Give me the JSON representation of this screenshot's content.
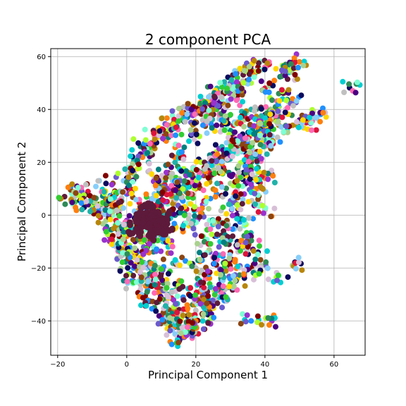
{
  "chart_data": {
    "type": "scatter",
    "title": "2 component PCA",
    "xlabel": "Principal Component 1",
    "ylabel": "Principal Component 2",
    "xlim": [
      -22,
      69
    ],
    "ylim": [
      -53,
      63
    ],
    "xticks": [
      -20,
      0,
      20,
      40,
      60
    ],
    "yticks": [
      -40,
      -20,
      0,
      20,
      40,
      60
    ],
    "grid": true,
    "legend": false,
    "palette": [
      "#0b0b5e",
      "#5e1a3a",
      "#7fffd4",
      "#a9d18e",
      "#1e90ff",
      "#9932cc",
      "#d8bfd8",
      "#ff7f0e",
      "#2e8b57",
      "#dc143c",
      "#adff2f",
      "#87cefa",
      "#b8860b",
      "#4b0082",
      "#20b2aa",
      "#ff69b4",
      "#00ced1",
      "#8b4513",
      "#c0c0c0",
      "#6a5acd",
      "#32cd32",
      "#ffd700",
      "#008080",
      "#800000"
    ],
    "points": [
      [
        64.5,
        48.2
      ],
      [
        -18,
        7
      ],
      [
        44,
        -23
      ],
      [
        48,
        -19
      ],
      [
        36,
        -40
      ],
      [
        42,
        -40
      ],
      [
        39,
        -19
      ],
      [
        50,
        58
      ],
      [
        46,
        57
      ],
      [
        52,
        35
      ],
      [
        55,
        37
      ],
      [
        56,
        38
      ],
      [
        48,
        34
      ],
      [
        50,
        36
      ],
      [
        44,
        41
      ],
      [
        40,
        56
      ],
      [
        47,
        54
      ],
      [
        46,
        55
      ],
      [
        -14,
        9
      ],
      [
        -13,
        9
      ],
      [
        -15,
        5
      ],
      [
        -12,
        4
      ],
      [
        -10,
        3
      ],
      [
        -8,
        4
      ],
      [
        -6,
        12
      ],
      [
        -6,
        6
      ],
      [
        -4,
        8
      ],
      [
        -2,
        9
      ],
      [
        0,
        8
      ],
      [
        2,
        16
      ],
      [
        4,
        22
      ],
      [
        6,
        25
      ],
      [
        8,
        28
      ],
      [
        10,
        30
      ],
      [
        12,
        32
      ],
      [
        14,
        34
      ],
      [
        16,
        36
      ],
      [
        18,
        38
      ],
      [
        20,
        40
      ],
      [
        22,
        42
      ],
      [
        24,
        44
      ],
      [
        26,
        46
      ],
      [
        28,
        48
      ],
      [
        30,
        50
      ],
      [
        32,
        52
      ],
      [
        34,
        54
      ],
      [
        36,
        55
      ],
      [
        38,
        56
      ],
      [
        -3,
        -5
      ],
      [
        -2,
        -10
      ],
      [
        -1,
        -15
      ],
      [
        0,
        -18
      ],
      [
        1,
        -22
      ],
      [
        2,
        -25
      ],
      [
        4,
        -28
      ],
      [
        6,
        -32
      ],
      [
        8,
        -35
      ],
      [
        10,
        -38
      ],
      [
        12,
        -42
      ],
      [
        14,
        -45
      ],
      [
        15,
        -47
      ],
      [
        16,
        -46
      ],
      [
        18,
        -44
      ],
      [
        20,
        -42
      ],
      [
        22,
        -40
      ],
      [
        24,
        -36
      ],
      [
        26,
        -32
      ],
      [
        28,
        -30
      ],
      [
        30,
        -26
      ],
      [
        32,
        -24
      ],
      [
        34,
        -22
      ],
      [
        36,
        -20
      ],
      [
        38,
        -14
      ],
      [
        36,
        -8
      ],
      [
        34,
        -4
      ],
      [
        32,
        0
      ],
      [
        30,
        4
      ],
      [
        34,
        8
      ],
      [
        38,
        10
      ],
      [
        40,
        14
      ],
      [
        38,
        18
      ],
      [
        36,
        22
      ],
      [
        40,
        26
      ],
      [
        42,
        30
      ],
      [
        44,
        34
      ],
      [
        40,
        38
      ],
      [
        36,
        40
      ],
      [
        32,
        44
      ],
      [
        28,
        46
      ],
      [
        24,
        42
      ],
      [
        20,
        40
      ],
      [
        16,
        38
      ],
      [
        12,
        34
      ],
      [
        8,
        30
      ],
      [
        4,
        26
      ],
      [
        2,
        20
      ],
      [
        0,
        14
      ],
      [
        -2,
        4
      ],
      [
        -4,
        0
      ],
      [
        -6,
        -2
      ],
      [
        -8,
        2
      ],
      [
        -5,
        -8
      ],
      [
        -3,
        -12
      ],
      [
        0,
        -8
      ],
      [
        2,
        -4
      ],
      [
        4,
        0
      ],
      [
        6,
        4
      ],
      [
        8,
        8
      ],
      [
        10,
        12
      ],
      [
        12,
        16
      ],
      [
        14,
        20
      ],
      [
        16,
        24
      ],
      [
        18,
        28
      ],
      [
        20,
        32
      ],
      [
        22,
        36
      ],
      [
        24,
        38
      ],
      [
        26,
        40
      ],
      [
        28,
        36
      ],
      [
        30,
        32
      ],
      [
        32,
        28
      ],
      [
        34,
        24
      ],
      [
        36,
        20
      ],
      [
        38,
        16
      ],
      [
        30,
        12
      ],
      [
        26,
        8
      ],
      [
        22,
        4
      ],
      [
        18,
        0
      ],
      [
        14,
        -4
      ],
      [
        10,
        -8
      ],
      [
        6,
        -12
      ],
      [
        4,
        -16
      ],
      [
        6,
        -20
      ],
      [
        8,
        -24
      ],
      [
        10,
        -28
      ],
      [
        12,
        -30
      ],
      [
        14,
        -34
      ],
      [
        16,
        -38
      ],
      [
        18,
        -40
      ],
      [
        20,
        -36
      ],
      [
        22,
        -30
      ],
      [
        24,
        -26
      ],
      [
        26,
        -22
      ],
      [
        28,
        -18
      ],
      [
        30,
        -14
      ],
      [
        32,
        -10
      ],
      [
        28,
        -6
      ],
      [
        24,
        -2
      ],
      [
        20,
        2
      ],
      [
        16,
        6
      ],
      [
        12,
        10
      ],
      [
        8,
        14
      ],
      [
        20,
        10
      ],
      [
        24,
        14
      ],
      [
        28,
        18
      ],
      [
        26,
        24
      ],
      [
        22,
        20
      ],
      [
        18,
        16
      ],
      [
        14,
        12
      ],
      [
        10,
        4
      ],
      [
        6,
        -4
      ],
      [
        12,
        -12
      ],
      [
        16,
        -16
      ],
      [
        20,
        -20
      ],
      [
        24,
        -14
      ],
      [
        22,
        -8
      ],
      [
        18,
        -4
      ],
      [
        14,
        0
      ],
      [
        10,
        -2
      ],
      [
        8,
        -6
      ],
      [
        6,
        -10
      ],
      [
        30,
        38
      ],
      [
        34,
        36
      ],
      [
        38,
        34
      ],
      [
        42,
        38
      ],
      [
        46,
        40
      ],
      [
        48,
        44
      ],
      [
        44,
        46
      ],
      [
        40,
        48
      ],
      [
        36,
        50
      ],
      [
        32,
        48
      ],
      [
        28,
        42
      ],
      [
        26,
        34
      ],
      [
        30,
        24
      ],
      [
        34,
        16
      ],
      [
        36,
        12
      ],
      [
        38,
        6
      ],
      [
        40,
        2
      ],
      [
        34,
        -12
      ],
      [
        30,
        -20
      ],
      [
        26,
        -28
      ],
      [
        22,
        -34
      ],
      [
        18,
        -30
      ],
      [
        14,
        -26
      ],
      [
        10,
        -22
      ],
      [
        8,
        -18
      ],
      [
        4,
        -10
      ],
      [
        2,
        -6
      ],
      [
        0,
        -2
      ],
      [
        -2,
        2
      ],
      [
        -4,
        6
      ],
      [
        5,
        3
      ],
      [
        7,
        -1
      ],
      [
        9,
        1
      ],
      [
        11,
        5
      ],
      [
        13,
        7
      ],
      [
        15,
        9
      ],
      [
        17,
        11
      ],
      [
        19,
        13
      ],
      [
        21,
        15
      ],
      [
        23,
        17
      ],
      [
        25,
        19
      ],
      [
        27,
        21
      ],
      [
        29,
        23
      ],
      [
        31,
        25
      ],
      [
        33,
        27
      ],
      [
        35,
        29
      ],
      [
        37,
        31
      ],
      [
        39,
        33
      ],
      [
        41,
        35
      ],
      [
        43,
        37
      ],
      [
        3,
        -14
      ],
      [
        5,
        -18
      ],
      [
        7,
        -22
      ],
      [
        9,
        -26
      ],
      [
        11,
        -32
      ],
      [
        13,
        -36
      ],
      [
        15,
        -40
      ],
      [
        17,
        -42
      ],
      [
        19,
        -38
      ],
      [
        21,
        -32
      ],
      [
        23,
        -24
      ],
      [
        25,
        -16
      ],
      [
        27,
        -10
      ],
      [
        29,
        -2
      ],
      [
        31,
        6
      ],
      [
        33,
        14
      ],
      [
        35,
        18
      ],
      [
        37,
        24
      ],
      [
        39,
        28
      ],
      [
        41,
        32
      ]
    ],
    "dense_blob": [
      [
        4,
        -2
      ],
      [
        6,
        -4
      ],
      [
        8,
        -3
      ],
      [
        10,
        -1
      ],
      [
        7,
        2
      ],
      [
        5,
        -6
      ],
      [
        9,
        -7
      ],
      [
        11,
        -4
      ],
      [
        3,
        -5
      ],
      [
        6,
        1
      ]
    ]
  }
}
